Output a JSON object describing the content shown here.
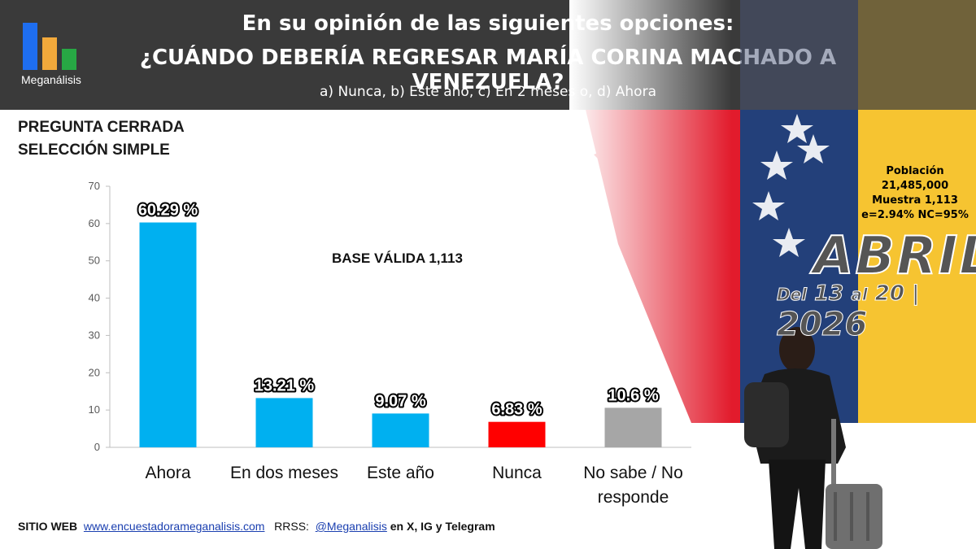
{
  "header": {
    "line1": "En su opinión de las siguientes opciones:",
    "line2": "¿CUÁNDO DEBERÍA REGRESAR MARÍA CORINA MACHADO A VENEZUELA?",
    "line3": "a) Nunca, b) Este año, c) En 2 meses o, d) Ahora"
  },
  "logo": {
    "name": "Meganálisis",
    "colors": [
      "#1e6ef0",
      "#f2a93b",
      "#27a844"
    ]
  },
  "question_type": {
    "line1": "PREGUNTA  CERRADA",
    "line2": "SELECCIÓN SIMPLE"
  },
  "base_label": "BASE VÁLIDA 1,113",
  "survey_info": {
    "population_label": "Población",
    "population_value": "21,485,000",
    "sample": "Muestra 1,113",
    "error": "e=2.94%  NC=95%"
  },
  "period": {
    "month": "ABRIL",
    "range_prefix": "Del",
    "day_start": "13",
    "range_mid": "al",
    "day_end": "20",
    "separator": "|",
    "year": "2026"
  },
  "footer": {
    "site_label": "SITIO WEB",
    "site_url": "www.encuestadorameganalisis.com",
    "rrss_label": "RRSS:",
    "handle": "@Meganalisis",
    "networks": "en X, IG y Telegram"
  },
  "chart_data": {
    "type": "bar",
    "categories": [
      "Ahora",
      "En dos meses",
      "Este año",
      "Nunca",
      "No sabe / No responde"
    ],
    "values": [
      60.29,
      13.21,
      9.07,
      6.83,
      10.6
    ],
    "value_labels": [
      "60.29 %",
      "13.21 %",
      "9.07 %",
      "6.83 %",
      "10.6 %"
    ],
    "colors": [
      "#00b0f0",
      "#00b0f0",
      "#00b0f0",
      "#ff0000",
      "#a6a6a6"
    ],
    "ylim": [
      0,
      70
    ],
    "yticks": [
      0,
      10,
      20,
      30,
      40,
      50,
      60,
      70
    ],
    "xlabel": "",
    "ylabel": "",
    "grid": false,
    "legend": "none"
  }
}
